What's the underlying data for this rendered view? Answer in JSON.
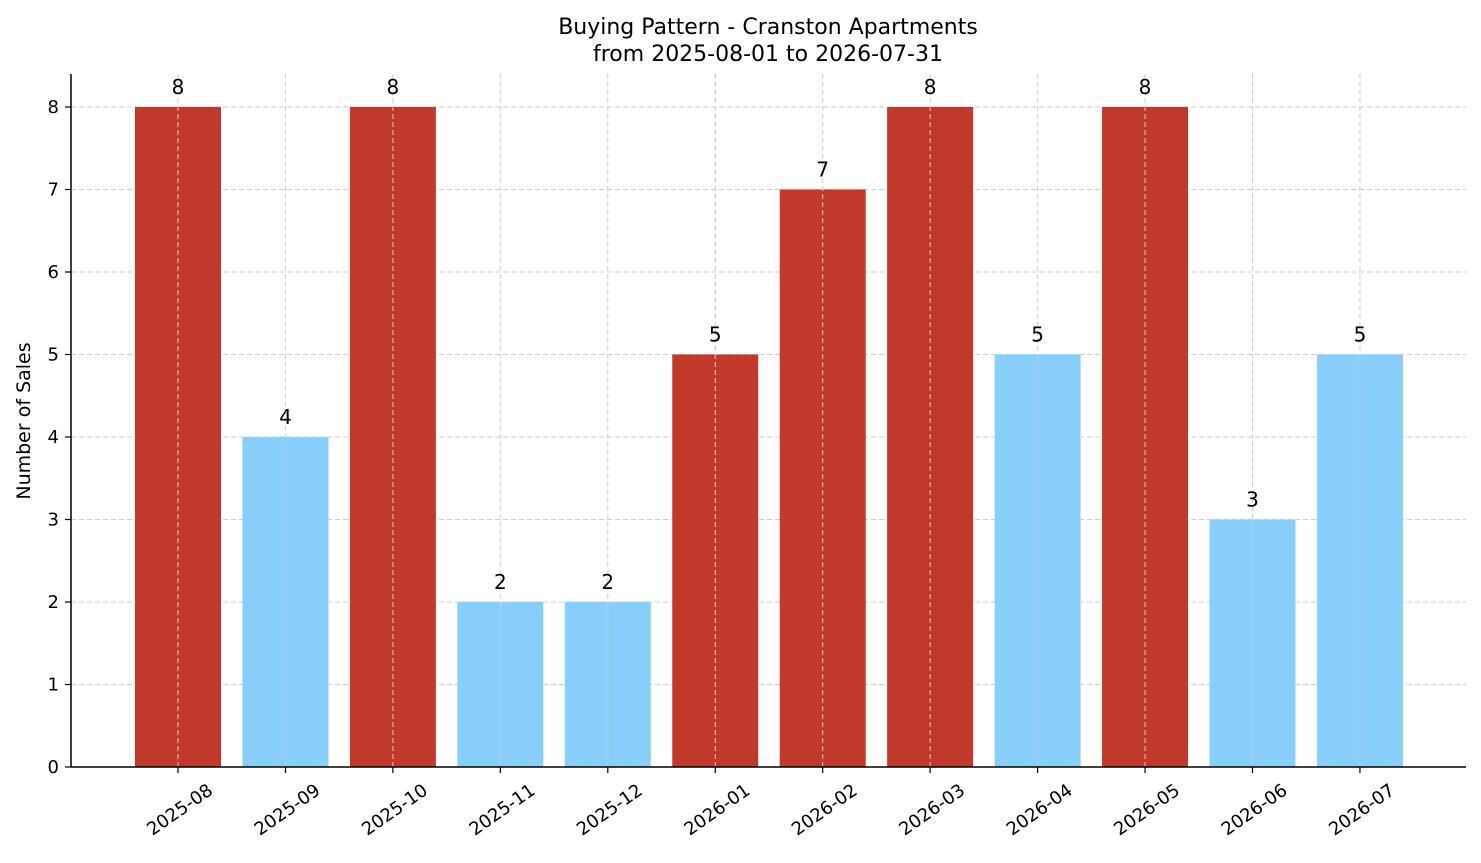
{
  "chart_data": {
    "type": "bar",
    "title": "Buying Pattern - Cranston Apartments",
    "subtitle": "from 2025-08-01 to 2026-07-31",
    "xlabel": "",
    "ylabel": "Number of Sales",
    "categories": [
      "2025-08",
      "2025-09",
      "2025-10",
      "2025-11",
      "2025-12",
      "2026-01",
      "2026-02",
      "2026-03",
      "2026-04",
      "2026-05",
      "2026-06",
      "2026-07"
    ],
    "values": [
      8,
      4,
      8,
      2,
      2,
      5,
      7,
      8,
      5,
      8,
      3,
      5
    ],
    "bar_colors": [
      "#c0392b",
      "#87cefa",
      "#c0392b",
      "#87cefa",
      "#87cefa",
      "#c0392b",
      "#c0392b",
      "#c0392b",
      "#87cefa",
      "#c0392b",
      "#87cefa",
      "#87cefa"
    ],
    "ylim": [
      0,
      8.4
    ],
    "yticks": [
      0,
      1,
      2,
      3,
      4,
      5,
      6,
      7,
      8
    ],
    "grid": true,
    "data_labels": true
  }
}
